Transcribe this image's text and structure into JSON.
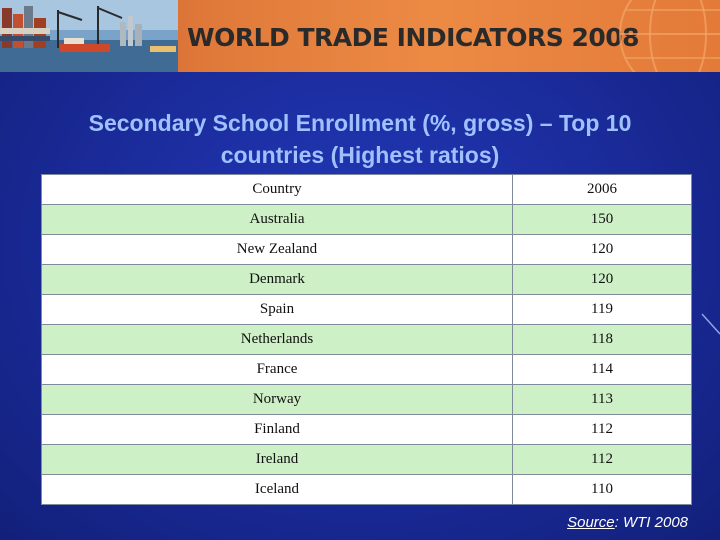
{
  "header": {
    "title": "WORLD TRADE INDICATORS 2008"
  },
  "slide": {
    "title": "Secondary School Enrollment (%, gross) – Top 10 countries (Highest ratios)"
  },
  "table": {
    "columns": [
      "Country",
      "2006"
    ],
    "rows": [
      {
        "country": "Australia",
        "value": "150"
      },
      {
        "country": "New Zealand",
        "value": "120"
      },
      {
        "country": "Denmark",
        "value": "120"
      },
      {
        "country": "Spain",
        "value": "119"
      },
      {
        "country": "Netherlands",
        "value": "118"
      },
      {
        "country": "France",
        "value": "114"
      },
      {
        "country": "Norway",
        "value": "113"
      },
      {
        "country": "Finland",
        "value": "112"
      },
      {
        "country": "Ireland",
        "value": "112"
      },
      {
        "country": "Iceland",
        "value": "110"
      }
    ]
  },
  "source": {
    "label": "Source",
    "text": ": WTI 2008"
  },
  "colors": {
    "background": "#1a2a8c",
    "header_orange": "#e07a3a",
    "title_text": "#9fc2ff",
    "row_green": "#cef0c6"
  }
}
